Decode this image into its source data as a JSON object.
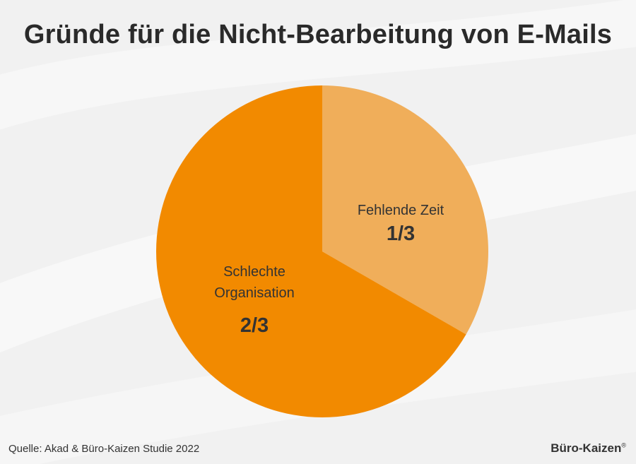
{
  "title": "Gründe für die Nicht-Bearbeitung von E-Mails",
  "colors": {
    "background": "#f1f1f1",
    "slice_major": "#f28a00",
    "slice_minor": "#f0ae5a",
    "text": "#2a2a2a"
  },
  "chart_data": {
    "type": "pie",
    "title": "Gründe für die Nicht-Bearbeitung von E-Mails",
    "slices": [
      {
        "label": "Fehlende Zeit",
        "value_label": "1/3",
        "value": 0.3333,
        "color": "#f0ae5a"
      },
      {
        "label": "Schlechte Organisation",
        "label_lines": [
          "Schlechte",
          "Organisation"
        ],
        "value_label": "2/3",
        "value": 0.6667,
        "color": "#f28a00"
      }
    ]
  },
  "footer": {
    "source": "Quelle: Akad & Büro-Kaizen Studie 2022",
    "brand": "Büro-Kaizen",
    "brand_mark": "®"
  }
}
